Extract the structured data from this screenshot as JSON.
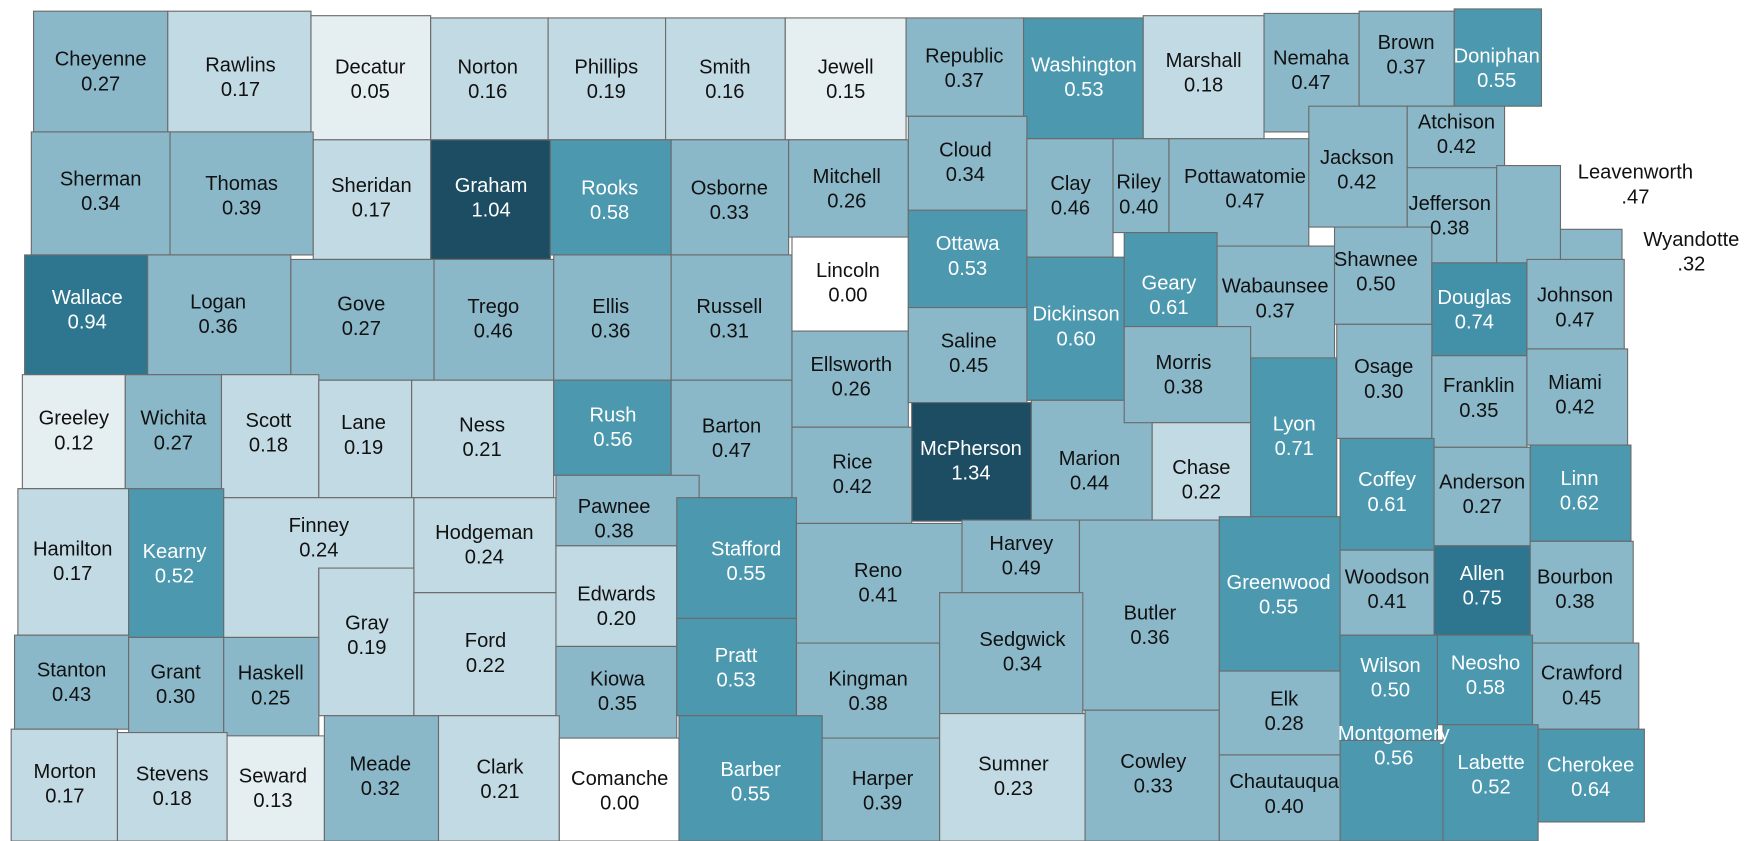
{
  "counties": [
    {
      "name": "Cheyenne",
      "value": 0.27,
      "label": "0.27",
      "color": "#8ab8c9"
    },
    {
      "name": "Rawlins",
      "value": 0.17,
      "label": "0.17",
      "color": "#c2dae3"
    },
    {
      "name": "Decatur",
      "value": 0.05,
      "label": "0.05",
      "color": "#e5eff2"
    },
    {
      "name": "Norton",
      "value": 0.16,
      "label": "0.16",
      "color": "#c2dae3"
    },
    {
      "name": "Phillips",
      "value": 0.19,
      "label": "0.19",
      "color": "#c2dae3"
    },
    {
      "name": "Smith",
      "value": 0.16,
      "label": "0.16",
      "color": "#c2dae3"
    },
    {
      "name": "Jewell",
      "value": 0.15,
      "label": "0.15",
      "color": "#e5eff2"
    },
    {
      "name": "Republic",
      "value": 0.37,
      "label": "0.37",
      "color": "#8ab8c9"
    },
    {
      "name": "Washington",
      "value": 0.53,
      "label": "0.53",
      "color": "#4b98af"
    },
    {
      "name": "Marshall",
      "value": 0.18,
      "label": "0.18",
      "color": "#c2dae3"
    },
    {
      "name": "Nemaha",
      "value": 0.47,
      "label": "0.47",
      "color": "#8ab8c9"
    },
    {
      "name": "Brown",
      "value": 0.37,
      "label": "0.37",
      "color": "#8ab8c9"
    },
    {
      "name": "Doniphan",
      "value": 0.55,
      "label": "0.55",
      "color": "#4b98af"
    },
    {
      "name": "Sherman",
      "value": 0.34,
      "label": "0.34",
      "color": "#8ab8c9"
    },
    {
      "name": "Thomas",
      "value": 0.39,
      "label": "0.39",
      "color": "#8ab8c9"
    },
    {
      "name": "Sheridan",
      "value": 0.17,
      "label": "0.17",
      "color": "#c2dae3"
    },
    {
      "name": "Graham",
      "value": 1.04,
      "label": "1.04",
      "color": "#1c4d63"
    },
    {
      "name": "Rooks",
      "value": 0.58,
      "label": "0.58",
      "color": "#4b98af"
    },
    {
      "name": "Osborne",
      "value": 0.33,
      "label": "0.33",
      "color": "#8ab8c9"
    },
    {
      "name": "Mitchell",
      "value": 0.26,
      "label": "0.26",
      "color": "#8ab8c9"
    },
    {
      "name": "Cloud",
      "value": 0.34,
      "label": "0.34",
      "color": "#8ab8c9"
    },
    {
      "name": "Clay",
      "value": 0.46,
      "label": "0.46",
      "color": "#8ab8c9"
    },
    {
      "name": "Riley",
      "value": 0.4,
      "label": "0.40",
      "color": "#8ab8c9"
    },
    {
      "name": "Pottawatomie",
      "value": 0.47,
      "label": "0.47",
      "color": "#8ab8c9"
    },
    {
      "name": "Jackson",
      "value": 0.42,
      "label": "0.42",
      "color": "#8ab8c9"
    },
    {
      "name": "Atchison",
      "value": 0.42,
      "label": "0.42",
      "color": "#8ab8c9"
    },
    {
      "name": "Jefferson",
      "value": 0.38,
      "label": "0.38",
      "color": "#8ab8c9"
    },
    {
      "name": "Leavenworth",
      "value": 0.47,
      "label": ".47",
      "color": "#8ab8c9"
    },
    {
      "name": "Wyandotte",
      "value": 0.32,
      "label": ".32",
      "color": "#8ab8c9"
    },
    {
      "name": "Wallace",
      "value": 0.94,
      "label": "0.94",
      "color": "#2e7690"
    },
    {
      "name": "Logan",
      "value": 0.36,
      "label": "0.36",
      "color": "#8ab8c9"
    },
    {
      "name": "Gove",
      "value": 0.27,
      "label": "0.27",
      "color": "#8ab8c9"
    },
    {
      "name": "Trego",
      "value": 0.46,
      "label": "0.46",
      "color": "#8ab8c9"
    },
    {
      "name": "Ellis",
      "value": 0.36,
      "label": "0.36",
      "color": "#8ab8c9"
    },
    {
      "name": "Russell",
      "value": 0.31,
      "label": "0.31",
      "color": "#8ab8c9"
    },
    {
      "name": "Lincoln",
      "value": 0.0,
      "label": "0.00",
      "color": "#ffffff"
    },
    {
      "name": "Ottawa",
      "value": 0.53,
      "label": "0.53",
      "color": "#4b98af"
    },
    {
      "name": "Dickinson",
      "value": 0.6,
      "label": "0.60",
      "color": "#4b98af"
    },
    {
      "name": "Geary",
      "value": 0.61,
      "label": "0.61",
      "color": "#4b98af"
    },
    {
      "name": "Wabaunsee",
      "value": 0.37,
      "label": "0.37",
      "color": "#8ab8c9"
    },
    {
      "name": "Shawnee",
      "value": 0.5,
      "label": "0.50",
      "color": "#8ab8c9"
    },
    {
      "name": "Douglas",
      "value": 0.74,
      "label": "0.74",
      "color": "#4391a9"
    },
    {
      "name": "Johnson",
      "value": 0.47,
      "label": "0.47",
      "color": "#8ab8c9"
    },
    {
      "name": "Greeley",
      "value": 0.12,
      "label": "0.12",
      "color": "#e5eff2"
    },
    {
      "name": "Wichita",
      "value": 0.27,
      "label": "0.27",
      "color": "#8ab8c9"
    },
    {
      "name": "Scott",
      "value": 0.18,
      "label": "0.18",
      "color": "#c2dae3"
    },
    {
      "name": "Lane",
      "value": 0.19,
      "label": "0.19",
      "color": "#c2dae3"
    },
    {
      "name": "Ness",
      "value": 0.21,
      "label": "0.21",
      "color": "#c2dae3"
    },
    {
      "name": "Rush",
      "value": 0.56,
      "label": "0.56",
      "color": "#4b98af"
    },
    {
      "name": "Barton",
      "value": 0.47,
      "label": "0.47",
      "color": "#8ab8c9"
    },
    {
      "name": "Ellsworth",
      "value": 0.26,
      "label": "0.26",
      "color": "#8ab8c9"
    },
    {
      "name": "Saline",
      "value": 0.45,
      "label": "0.45",
      "color": "#8ab8c9"
    },
    {
      "name": "McPherson",
      "value": 1.34,
      "label": "1.34",
      "color": "#1c4d63"
    },
    {
      "name": "Marion",
      "value": 0.44,
      "label": "0.44",
      "color": "#8ab8c9"
    },
    {
      "name": "Morris",
      "value": 0.38,
      "label": "0.38",
      "color": "#8ab8c9"
    },
    {
      "name": "Chase",
      "value": 0.22,
      "label": "0.22",
      "color": "#c2dae3"
    },
    {
      "name": "Lyon",
      "value": 0.71,
      "label": "0.71",
      "color": "#4b98af"
    },
    {
      "name": "Osage",
      "value": 0.3,
      "label": "0.30",
      "color": "#8ab8c9"
    },
    {
      "name": "Franklin",
      "value": 0.35,
      "label": "0.35",
      "color": "#8ab8c9"
    },
    {
      "name": "Miami",
      "value": 0.42,
      "label": "0.42",
      "color": "#8ab8c9"
    },
    {
      "name": "Rice",
      "value": 0.42,
      "label": "0.42",
      "color": "#8ab8c9"
    },
    {
      "name": "Hamilton",
      "value": 0.17,
      "label": "0.17",
      "color": "#c2dae3"
    },
    {
      "name": "Kearny",
      "value": 0.52,
      "label": "0.52",
      "color": "#4b98af"
    },
    {
      "name": "Finney",
      "value": 0.24,
      "label": "0.24",
      "color": "#c2dae3"
    },
    {
      "name": "Hodgeman",
      "value": 0.24,
      "label": "0.24",
      "color": "#c2dae3"
    },
    {
      "name": "Pawnee",
      "value": 0.38,
      "label": "0.38",
      "color": "#8ab8c9"
    },
    {
      "name": "Edwards",
      "value": 0.2,
      "label": "0.20",
      "color": "#c2dae3"
    },
    {
      "name": "Stafford",
      "value": 0.55,
      "label": "0.55",
      "color": "#4b98af"
    },
    {
      "name": "Reno",
      "value": 0.41,
      "label": "0.41",
      "color": "#8ab8c9"
    },
    {
      "name": "Harvey",
      "value": 0.49,
      "label": "0.49",
      "color": "#8ab8c9"
    },
    {
      "name": "Butler",
      "value": 0.36,
      "label": "0.36",
      "color": "#8ab8c9"
    },
    {
      "name": "Greenwood",
      "value": 0.55,
      "label": "0.55",
      "color": "#4b98af"
    },
    {
      "name": "Coffey",
      "value": 0.61,
      "label": "0.61",
      "color": "#4b98af"
    },
    {
      "name": "Anderson",
      "value": 0.27,
      "label": "0.27",
      "color": "#8ab8c9"
    },
    {
      "name": "Linn",
      "value": 0.62,
      "label": "0.62",
      "color": "#4b98af"
    },
    {
      "name": "Gray",
      "value": 0.19,
      "label": "0.19",
      "color": "#c2dae3"
    },
    {
      "name": "Ford",
      "value": 0.22,
      "label": "0.22",
      "color": "#c2dae3"
    },
    {
      "name": "Kiowa",
      "value": 0.35,
      "label": "0.35",
      "color": "#8ab8c9"
    },
    {
      "name": "Pratt",
      "value": 0.53,
      "label": "0.53",
      "color": "#4b98af"
    },
    {
      "name": "Kingman",
      "value": 0.38,
      "label": "0.38",
      "color": "#8ab8c9"
    },
    {
      "name": "Sedgwick",
      "value": 0.34,
      "label": "0.34",
      "color": "#8ab8c9"
    },
    {
      "name": "Woodson",
      "value": 0.41,
      "label": "0.41",
      "color": "#8ab8c9"
    },
    {
      "name": "Allen",
      "value": 0.75,
      "label": "0.75",
      "color": "#2e7690"
    },
    {
      "name": "Bourbon",
      "value": 0.38,
      "label": "0.38",
      "color": "#8ab8c9"
    },
    {
      "name": "Stanton",
      "value": 0.43,
      "label": "0.43",
      "color": "#8ab8c9"
    },
    {
      "name": "Grant",
      "value": 0.3,
      "label": "0.30",
      "color": "#8ab8c9"
    },
    {
      "name": "Haskell",
      "value": 0.25,
      "label": "0.25",
      "color": "#8ab8c9"
    },
    {
      "name": "Morton",
      "value": 0.17,
      "label": "0.17",
      "color": "#c2dae3"
    },
    {
      "name": "Stevens",
      "value": 0.18,
      "label": "0.18",
      "color": "#c2dae3"
    },
    {
      "name": "Seward",
      "value": 0.13,
      "label": "0.13",
      "color": "#e5eff2"
    },
    {
      "name": "Meade",
      "value": 0.32,
      "label": "0.32",
      "color": "#8ab8c9"
    },
    {
      "name": "Clark",
      "value": 0.21,
      "label": "0.21",
      "color": "#c2dae3"
    },
    {
      "name": "Comanche",
      "value": 0.0,
      "label": "0.00",
      "color": "#ffffff"
    },
    {
      "name": "Barber",
      "value": 0.55,
      "label": "0.55",
      "color": "#4b98af"
    },
    {
      "name": "Harper",
      "value": 0.39,
      "label": "0.39",
      "color": "#8ab8c9"
    },
    {
      "name": "Sumner",
      "value": 0.23,
      "label": "0.23",
      "color": "#c2dae3"
    },
    {
      "name": "Cowley",
      "value": 0.33,
      "label": "0.33",
      "color": "#8ab8c9"
    },
    {
      "name": "Elk",
      "value": 0.28,
      "label": "0.28",
      "color": "#8ab8c9"
    },
    {
      "name": "Chautauqua",
      "value": 0.4,
      "label": "0.40",
      "color": "#8ab8c9"
    },
    {
      "name": "Wilson",
      "value": 0.5,
      "label": "0.50",
      "color": "#4b98af"
    },
    {
      "name": "Neosho",
      "value": 0.58,
      "label": "0.58",
      "color": "#4b98af"
    },
    {
      "name": "Crawford",
      "value": 0.45,
      "label": "0.45",
      "color": "#8ab8c9"
    },
    {
      "name": "Montgomery",
      "value": 0.56,
      "label": "0.56",
      "color": "#4b98af"
    },
    {
      "name": "Labette",
      "value": 0.52,
      "label": "0.52",
      "color": "#4b98af"
    },
    {
      "name": "Cherokee",
      "value": 0.64,
      "label": "0.64",
      "color": "#4b98af"
    }
  ]
}
